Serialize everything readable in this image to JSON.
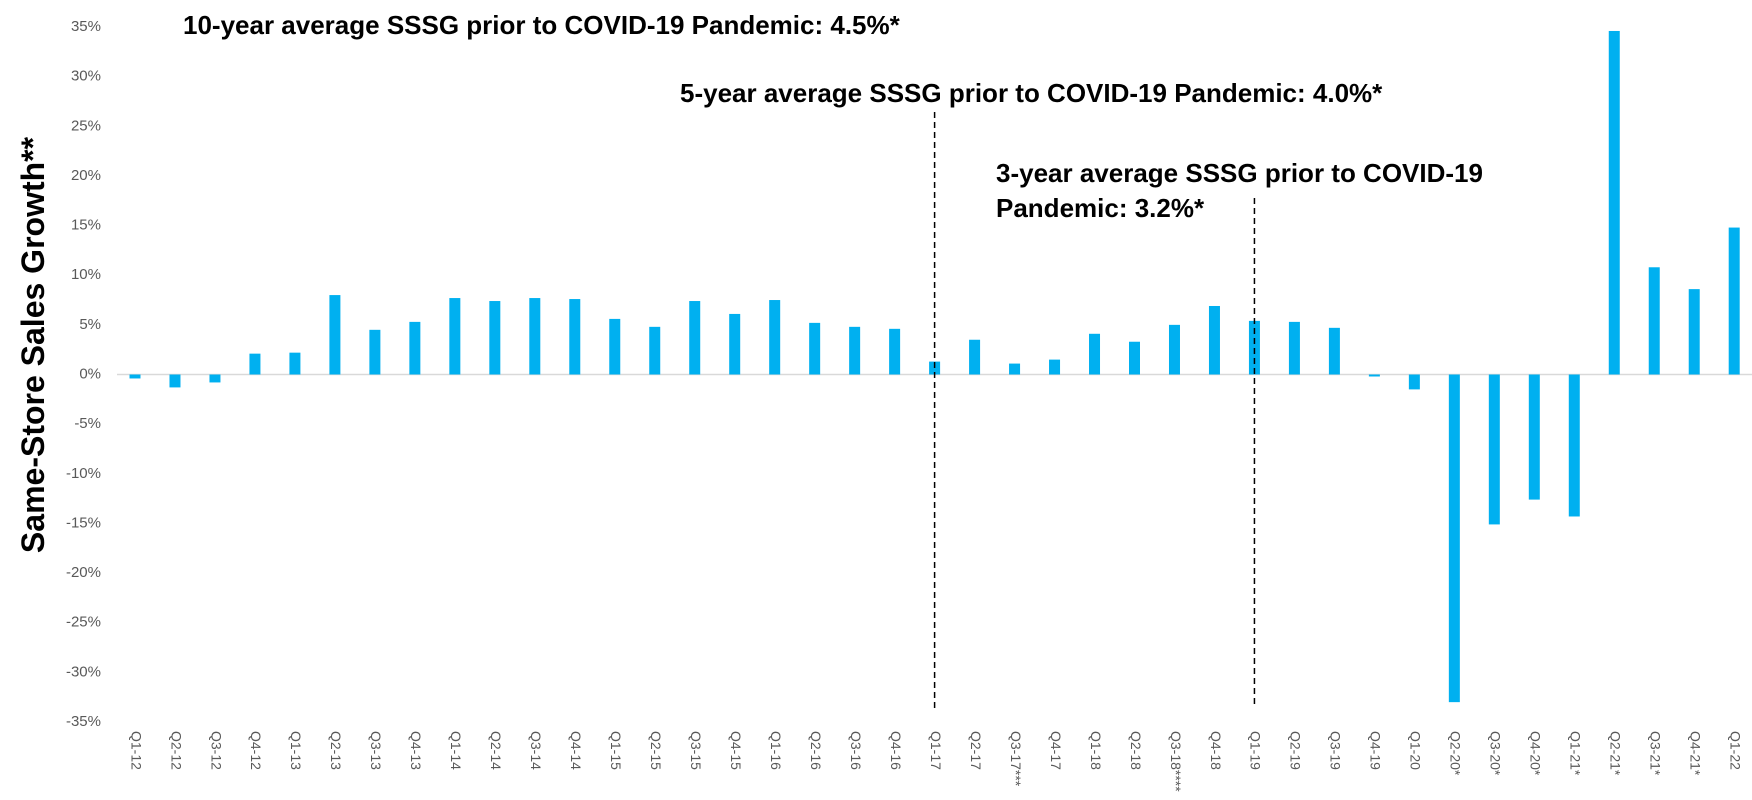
{
  "chart_data": {
    "type": "bar",
    "y_axis_label": "Same-Store Sales Growth**",
    "annotations": [
      {
        "lines": [
          "10-year average SSSG prior to COVID-19 Pandemic: 4.5%*"
        ]
      },
      {
        "lines": [
          "5-year average SSSG prior to COVID-19 Pandemic: 4.0%*"
        ]
      },
      {
        "lines": [
          "3-year average SSSG prior to COVID-19",
          "Pandemic: 3.2%*"
        ]
      }
    ],
    "categories": [
      "Q1-12",
      "Q2-12",
      "Q3-12",
      "Q4-12",
      "Q1-13",
      "Q2-13",
      "Q3-13",
      "Q4-13",
      "Q1-14",
      "Q2-14",
      "Q3-14",
      "Q4-14",
      "Q1-15",
      "Q2-15",
      "Q3-15",
      "Q4-15",
      "Q1-16",
      "Q2-16",
      "Q3-16",
      "Q4-16",
      "Q1-17",
      "Q2-17",
      "Q3-17***",
      "Q4-17",
      "Q1-18",
      "Q2-18",
      "Q3-18****",
      "Q4-18",
      "Q1-19",
      "Q2-19",
      "Q3-19",
      "Q4-19",
      "Q1-20",
      "Q2-20*",
      "Q3-20*",
      "Q4-20*",
      "Q1-21*",
      "Q2-21*",
      "Q3-21*",
      "Q4-21*",
      "Q1-22"
    ],
    "values": [
      -0.4,
      -1.3,
      -0.8,
      2.1,
      2.2,
      8.0,
      4.5,
      5.3,
      7.7,
      7.4,
      7.7,
      7.6,
      5.6,
      4.8,
      7.4,
      6.1,
      7.5,
      5.2,
      4.8,
      4.6,
      1.3,
      3.5,
      1.1,
      1.5,
      4.1,
      3.3,
      5.0,
      6.9,
      5.4,
      5.3,
      4.7,
      -0.2,
      -1.5,
      -33.0,
      -15.1,
      -12.6,
      -14.3,
      34.6,
      10.8,
      8.6,
      14.8
    ],
    "color": "#00b0f0",
    "ylim": [
      -35,
      35
    ],
    "yticks": [
      {
        "value": -35,
        "label": "-35%"
      },
      {
        "value": -30,
        "label": "-30%"
      },
      {
        "value": -25,
        "label": "-25%"
      },
      {
        "value": -20,
        "label": "-20%"
      },
      {
        "value": -15,
        "label": "-15%"
      },
      {
        "value": -10,
        "label": "-10%"
      },
      {
        "value": -5,
        "label": "-5%"
      },
      {
        "value": 0,
        "label": "0%"
      },
      {
        "value": 5,
        "label": "5%"
      },
      {
        "value": 10,
        "label": "10%"
      },
      {
        "value": 15,
        "label": "15%"
      },
      {
        "value": 20,
        "label": "20%"
      },
      {
        "value": 25,
        "label": "25%"
      },
      {
        "value": 30,
        "label": "30%"
      },
      {
        "value": 35,
        "label": "35%"
      }
    ],
    "grid": false
  }
}
